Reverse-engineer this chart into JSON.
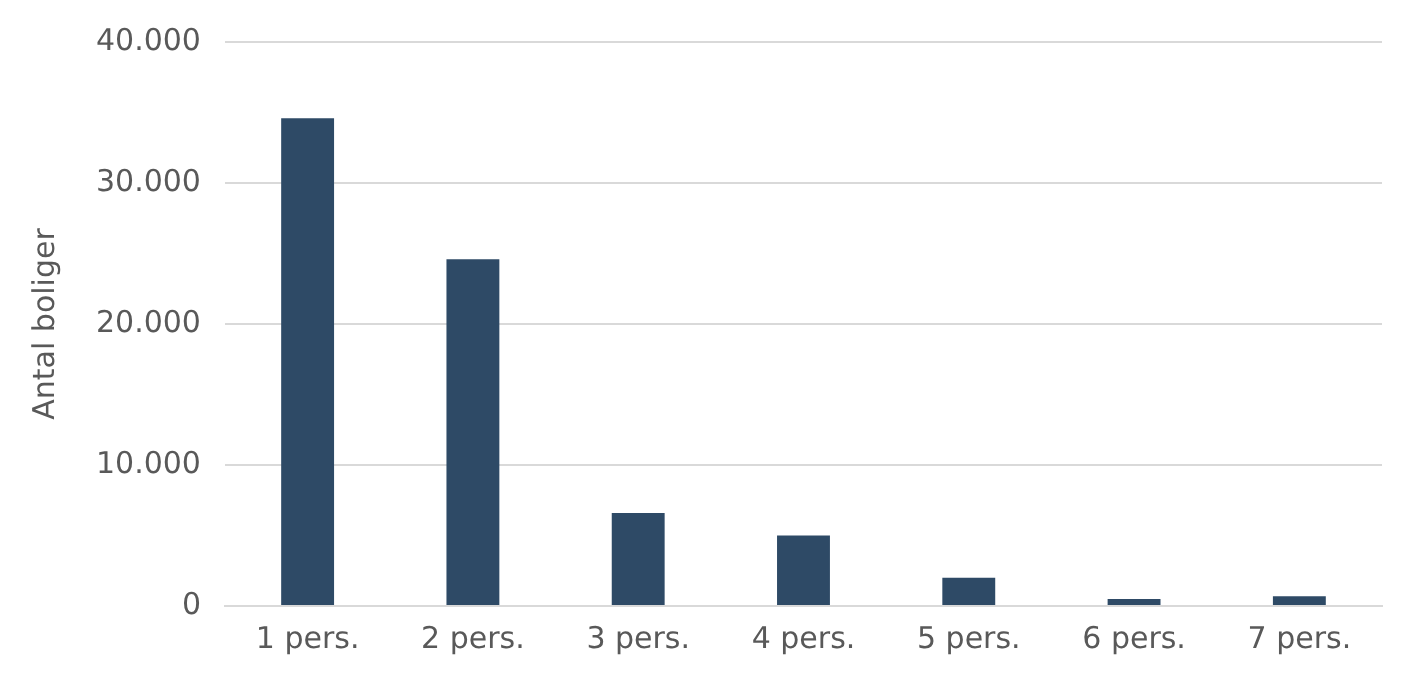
{
  "chart_data": {
    "type": "bar",
    "ylabel": "Antal boliger",
    "categories": [
      "1 pers.",
      "2 pers.",
      "3 pers.",
      "4 pers.",
      "5 pers.",
      "6 pers.",
      "7 pers."
    ],
    "values": [
      34600,
      24600,
      6600,
      5000,
      2000,
      500,
      700
    ],
    "color": "#2e4a66",
    "ylim": [
      0,
      40000
    ],
    "yticks": [
      {
        "value": 0,
        "label": "0"
      },
      {
        "value": 10000,
        "label": "10.000"
      },
      {
        "value": 20000,
        "label": "20.000"
      },
      {
        "value": 30000,
        "label": "30.000"
      },
      {
        "value": 40000,
        "label": "40.000"
      }
    ],
    "grid": "y"
  }
}
